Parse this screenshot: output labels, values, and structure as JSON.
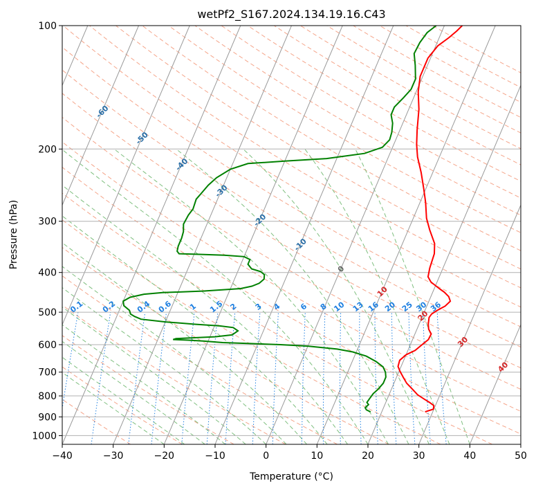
{
  "chart_data": {
    "type": "line",
    "subtype": "skew-t log-p diagram",
    "title": "wetPf2_S167.2024.134.19.16.C43",
    "xlabel": "Temperature (°C)",
    "ylabel": "Pressure (hPa)",
    "xlim": [
      -40,
      50
    ],
    "ylim": [
      1050,
      100
    ],
    "yscale": "log",
    "grid": true,
    "x_ticks": [
      -40,
      -30,
      -20,
      -10,
      0,
      10,
      20,
      30,
      40,
      50
    ],
    "x_tick_labels": [
      "−40",
      "−30",
      "−20",
      "−10",
      "0",
      "10",
      "20",
      "30",
      "40",
      "50"
    ],
    "y_ticks": [
      100,
      200,
      300,
      400,
      500,
      600,
      700,
      800,
      900,
      1000
    ],
    "y_tick_labels": [
      "100",
      "200",
      "300",
      "400",
      "500",
      "600",
      "700",
      "800",
      "900",
      "1000"
    ],
    "series": [
      {
        "role": "temperature",
        "color": "#ff0000",
        "points": [
          [
            28.5,
            875
          ],
          [
            29.9,
            862
          ],
          [
            29.7,
            845
          ],
          [
            28.6,
            830
          ],
          [
            27.3,
            815
          ],
          [
            25.6,
            795
          ],
          [
            24.1,
            770
          ],
          [
            22.5,
            745
          ],
          [
            21.3,
            720
          ],
          [
            20.2,
            697
          ],
          [
            19.4,
            678
          ],
          [
            19.2,
            655
          ],
          [
            20.0,
            635
          ],
          [
            21.4,
            620
          ],
          [
            22.3,
            600
          ],
          [
            23.1,
            583
          ],
          [
            23.2,
            565
          ],
          [
            22.3,
            550
          ],
          [
            21.8,
            535
          ],
          [
            21.4,
            515
          ],
          [
            21.6,
            505
          ],
          [
            22.4,
            495
          ],
          [
            23.6,
            483
          ],
          [
            24.2,
            470
          ],
          [
            23.5,
            458
          ],
          [
            22.3,
            447
          ],
          [
            21.0,
            438
          ],
          [
            18.8,
            422
          ],
          [
            17.8,
            410
          ],
          [
            17.4,
            390
          ],
          [
            17.1,
            360
          ],
          [
            16.3,
            340
          ],
          [
            14.2,
            315
          ],
          [
            12.6,
            295
          ],
          [
            11.1,
            270
          ],
          [
            9.6,
            250
          ],
          [
            7.7,
            228
          ],
          [
            5.7,
            209
          ],
          [
            4.5,
            195
          ],
          [
            3.4,
            180
          ],
          [
            2.0,
            160
          ],
          [
            0.4,
            145
          ],
          [
            -0.5,
            133
          ],
          [
            -0.5,
            120
          ],
          [
            0.4,
            112
          ],
          [
            1.9,
            107
          ],
          [
            2.9,
            103
          ],
          [
            3.5,
            100
          ]
        ]
      },
      {
        "role": "dewpoint",
        "color": "#008000",
        "points": [
          [
            17.8,
            875
          ],
          [
            16.8,
            865
          ],
          [
            16.4,
            855
          ],
          [
            16.8,
            840
          ],
          [
            16.3,
            830
          ],
          [
            16.5,
            812
          ],
          [
            16.8,
            790
          ],
          [
            17.4,
            770
          ],
          [
            17.9,
            745
          ],
          [
            17.9,
            720
          ],
          [
            17.4,
            700
          ],
          [
            16.5,
            680
          ],
          [
            14.7,
            660
          ],
          [
            12.3,
            640
          ],
          [
            9.3,
            625
          ],
          [
            6.0,
            615
          ],
          [
            0.0,
            605
          ],
          [
            -5.5,
            600
          ],
          [
            -12.0,
            596
          ],
          [
            -17.0,
            593
          ],
          [
            -21.0,
            588
          ],
          [
            -24.0,
            585
          ],
          [
            -27.0,
            583
          ],
          [
            -26.5,
            580
          ],
          [
            -23.0,
            577
          ],
          [
            -19.0,
            574
          ],
          [
            -15.8,
            568
          ],
          [
            -15.0,
            555
          ],
          [
            -16.2,
            545
          ],
          [
            -19.0,
            540
          ],
          [
            -24.0,
            535
          ],
          [
            -30.0,
            528
          ],
          [
            -35.0,
            520
          ],
          [
            -36.5,
            512
          ],
          [
            -37.5,
            505
          ],
          [
            -38.0,
            495
          ],
          [
            -39.5,
            482
          ],
          [
            -40.0,
            470
          ],
          [
            -39.0,
            460
          ],
          [
            -36.5,
            452
          ],
          [
            -33.0,
            448
          ],
          [
            -25.0,
            444
          ],
          [
            -18.0,
            438
          ],
          [
            -16.0,
            432
          ],
          [
            -14.8,
            425
          ],
          [
            -14.2,
            415
          ],
          [
            -14.5,
            405
          ],
          [
            -15.5,
            398
          ],
          [
            -17.5,
            392
          ],
          [
            -18.6,
            382
          ],
          [
            -18.6,
            372
          ],
          [
            -20.0,
            366
          ],
          [
            -24.0,
            363
          ],
          [
            -30.0,
            361
          ],
          [
            -33.0,
            360
          ],
          [
            -33.6,
            355
          ],
          [
            -33.8,
            345
          ],
          [
            -33.8,
            330
          ],
          [
            -34.0,
            318
          ],
          [
            -34.6,
            305
          ],
          [
            -34.4,
            290
          ],
          [
            -34.0,
            280
          ],
          [
            -34.2,
            265
          ],
          [
            -33.6,
            255
          ],
          [
            -33.0,
            245
          ],
          [
            -32.0,
            235
          ],
          [
            -30.0,
            224
          ],
          [
            -27.0,
            217
          ],
          [
            -20.0,
            214
          ],
          [
            -12.0,
            211
          ],
          [
            -5.0,
            205
          ],
          [
            -2.0,
            198
          ],
          [
            -1.2,
            190
          ],
          [
            -1.4,
            182
          ],
          [
            -2.0,
            173
          ],
          [
            -3.0,
            165
          ],
          [
            -3.0,
            158
          ],
          [
            -2.0,
            150
          ],
          [
            -1.2,
            143
          ],
          [
            -1.2,
            135
          ],
          [
            -2.4,
            125
          ],
          [
            -3.6,
            117
          ],
          [
            -3.4,
            110
          ],
          [
            -2.8,
            104
          ],
          [
            -1.6,
            100
          ]
        ]
      }
    ],
    "isotherm_ticks": [
      "-100",
      "-90",
      "-80",
      "-70",
      "-60",
      "-50",
      "-40",
      "-30",
      "-20",
      "-10",
      "0",
      "10",
      "20",
      "30",
      "40"
    ],
    "mixing_ratio_labels": [
      "0.1",
      "0.2",
      "0.4",
      "0.6",
      "1",
      "1.5",
      "2",
      "3",
      "4",
      "6",
      "8",
      "10",
      "13",
      "16",
      "20",
      "25",
      "30",
      "36"
    ],
    "colors": {
      "temperature": "#ff0000",
      "dewpoint": "#008000",
      "dry_adiabat": "#f5a58a",
      "moist_adiabat": "#7fbf7f",
      "mixing_ratio": "#1e7fe0",
      "isotherm": "#999999",
      "isotherm_label_cold": "#2b6fa8",
      "isotherm_label_warm": "#d62728"
    }
  }
}
